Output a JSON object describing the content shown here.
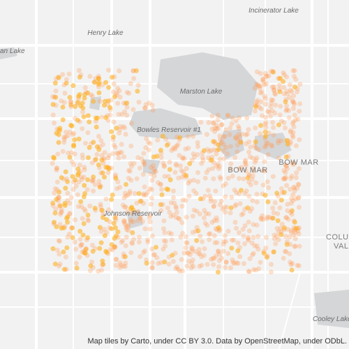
{
  "labels": [
    "Incinerator Lake",
    "Henry Lake",
    "an Lake",
    "Marston Lake",
    "Bowles Reservoir #1",
    "BOW MAR",
    "BOW MAR",
    "Johnson Reservoir",
    "COLU",
    "VAL",
    "Cooley Lake"
  ],
  "attribution": "Map tiles by Carto, under CC BY 3.0. Data by OpenStreetMap, under ODbL."
}
